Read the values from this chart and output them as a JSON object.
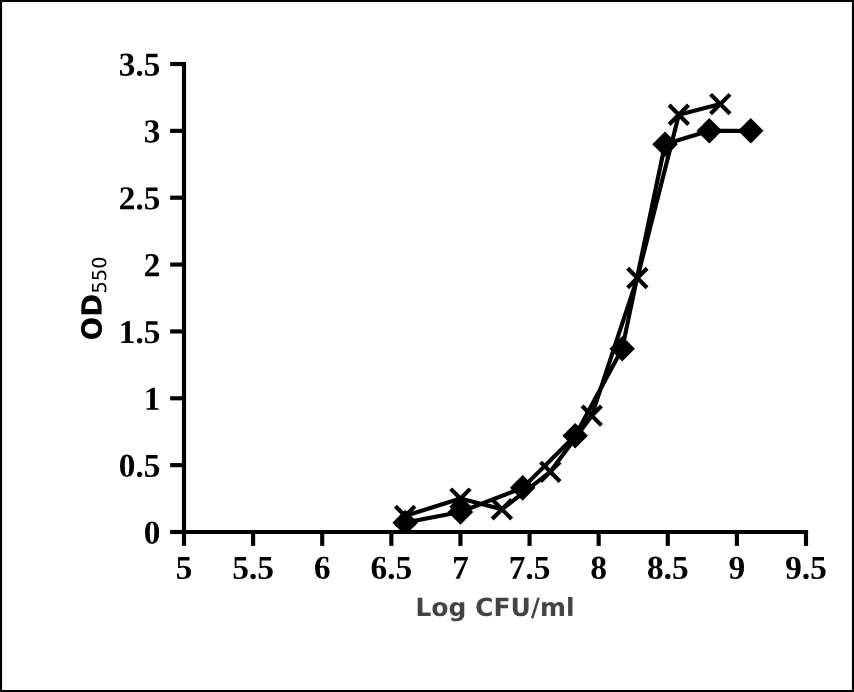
{
  "chart_data": {
    "type": "line",
    "xlabel": "Log CFU/ml",
    "ylabel": "OD$_{550}$",
    "xlim": [
      5,
      9.5
    ],
    "xticks": [
      5,
      5.5,
      6,
      6.5,
      7,
      7.5,
      8,
      8.5,
      9,
      9.5
    ],
    "ylim": [
      0,
      3.5
    ],
    "yticks": [
      0,
      0.5,
      1,
      1.5,
      2,
      2.5,
      3,
      3.5
    ],
    "grid": false,
    "legend": false,
    "series": [
      {
        "color": "#000000",
        "marker": "diamond",
        "x": [
          6.6,
          7.0,
          7.45,
          7.83,
          8.17,
          8.48,
          8.8,
          9.1
        ],
        "values": [
          0.07,
          0.15,
          0.33,
          0.72,
          1.37,
          2.9,
          3.0,
          3.0
        ]
      },
      {
        "color": "#000000",
        "marker": "cross",
        "x": [
          6.6,
          7.0,
          7.3,
          7.65,
          7.95,
          8.28,
          8.58,
          8.88
        ],
        "values": [
          0.12,
          0.25,
          0.17,
          0.45,
          0.87,
          1.9,
          3.12,
          3.2
        ]
      }
    ]
  }
}
